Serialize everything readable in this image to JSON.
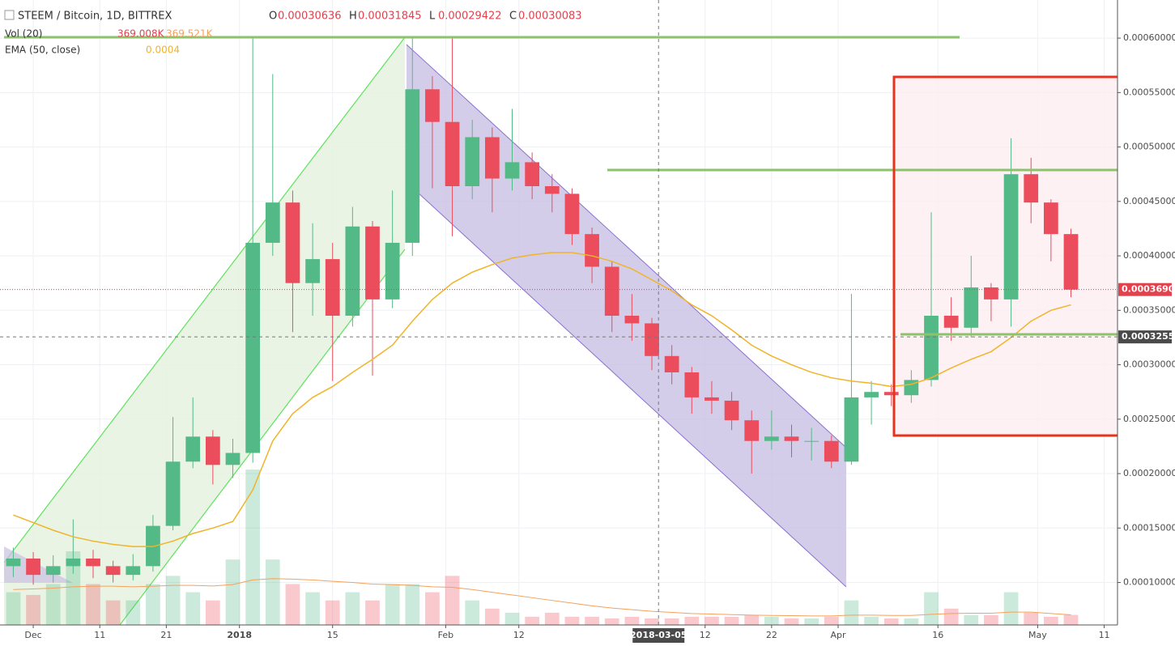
{
  "chart_data": {
    "type": "candlestick",
    "title": "STEEM / Bitcoin, 1D, BITTREX",
    "ohlc": [
      {
        "label": "O",
        "value": 0.00030636
      },
      {
        "label": "H",
        "value": 0.00031845
      },
      {
        "label": "L",
        "value": 0.00029422
      },
      {
        "label": "C",
        "value": 0.00030083
      }
    ],
    "x": [
      "2017-11-28",
      "2017-12-01",
      "2017-12-04",
      "2017-12-07",
      "2017-12-10",
      "2017-12-13",
      "2017-12-16",
      "2017-12-19",
      "2017-12-22",
      "2017-12-25",
      "2017-12-28",
      "2017-12-31",
      "2018-01-03",
      "2018-01-06",
      "2018-01-09",
      "2018-01-12",
      "2018-01-15",
      "2018-01-18",
      "2018-01-21",
      "2018-01-24",
      "2018-01-27",
      "2018-01-30",
      "2018-02-02",
      "2018-02-05",
      "2018-02-08",
      "2018-02-11",
      "2018-02-14",
      "2018-02-17",
      "2018-02-20",
      "2018-02-23",
      "2018-02-26",
      "2018-03-01",
      "2018-03-04",
      "2018-03-07",
      "2018-03-10",
      "2018-03-13",
      "2018-03-16",
      "2018-03-19",
      "2018-03-22",
      "2018-03-25",
      "2018-03-28",
      "2018-03-31",
      "2018-04-03",
      "2018-04-06",
      "2018-04-09",
      "2018-04-12",
      "2018-04-15",
      "2018-04-18",
      "2018-04-21",
      "2018-04-24",
      "2018-04-27",
      "2018-04-30",
      "2018-05-03",
      "2018-05-06"
    ],
    "open": [
      0.000115,
      0.000122,
      0.000107,
      0.000115,
      0.000122,
      0.000115,
      0.000107,
      0.000115,
      0.000152,
      0.000211,
      0.000234,
      0.000208,
      0.000219,
      0.000412,
      0.000449,
      0.000375,
      0.000397,
      0.000345,
      0.000427,
      0.00036,
      0.000412,
      0.000553,
      0.000523,
      0.000464,
      0.000509,
      0.000471,
      0.000486,
      0.000464,
      0.000457,
      0.00042,
      0.00039,
      0.000345,
      0.000338,
      0.000308,
      0.000293,
      0.00027,
      0.000267,
      0.000249,
      0.00023,
      0.000234,
      0.00023,
      0.00023,
      0.000211,
      0.00027,
      0.000275,
      0.000272,
      0.000286,
      0.000345,
      0.000334,
      0.000371,
      0.00036,
      0.000475,
      0.000449,
      0.00042
    ],
    "high": [
      0.000132,
      0.000128,
      0.000125,
      0.000158,
      0.00013,
      0.00012,
      0.000126,
      0.000162,
      0.000252,
      0.00027,
      0.00024,
      0.000232,
      0.0006,
      0.000567,
      0.00046,
      0.00043,
      0.000412,
      0.000445,
      0.000432,
      0.00046,
      0.0006,
      0.000565,
      0.0006,
      0.000525,
      0.000518,
      0.000535,
      0.000495,
      0.000475,
      0.000462,
      0.000426,
      0.000395,
      0.000365,
      0.000343,
      0.000318,
      0.000298,
      0.000285,
      0.000275,
      0.000258,
      0.000258,
      0.000245,
      0.000242,
      0.000235,
      0.000365,
      0.000285,
      0.000282,
      0.000295,
      0.00044,
      0.000362,
      0.0004,
      0.000375,
      0.000508,
      0.00049,
      0.000452,
      0.000425
    ],
    "low": [
      0.000105,
      9.8e-05,
      0.0001,
      0.000108,
      0.000104,
      0.0001,
      0.000102,
      0.00011,
      0.000148,
      0.000205,
      0.00019,
      0.000196,
      0.00021,
      0.0004,
      0.00033,
      0.000345,
      0.000285,
      0.000335,
      0.00029,
      0.000352,
      0.0004,
      0.000462,
      0.000418,
      0.000452,
      0.00044,
      0.00046,
      0.000452,
      0.00044,
      0.00041,
      0.000375,
      0.00033,
      0.000322,
      0.000295,
      0.000282,
      0.000255,
      0.000255,
      0.00024,
      0.0002,
      0.000222,
      0.000215,
      0.000212,
      0.000205,
      0.000208,
      0.000245,
      0.000262,
      0.000265,
      0.00028,
      0.000322,
      0.000325,
      0.00034,
      0.000335,
      0.00043,
      0.000395,
      0.000362
    ],
    "close": [
      0.000122,
      0.000107,
      0.000115,
      0.000122,
      0.000115,
      0.000107,
      0.000115,
      0.000152,
      0.000211,
      0.000234,
      0.000208,
      0.000219,
      0.000412,
      0.000449,
      0.000375,
      0.000397,
      0.000345,
      0.000427,
      0.00036,
      0.000412,
      0.000553,
      0.000523,
      0.000464,
      0.000509,
      0.000471,
      0.000486,
      0.000464,
      0.000457,
      0.00042,
      0.00039,
      0.000345,
      0.000338,
      0.000308,
      0.000293,
      0.00027,
      0.000267,
      0.000249,
      0.00023,
      0.000234,
      0.00023,
      0.00023,
      0.000211,
      0.00027,
      0.000275,
      0.000272,
      0.000286,
      0.000345,
      0.000334,
      0.000371,
      0.00036,
      0.000475,
      0.000449,
      0.00042,
      0.000369
    ],
    "up_color": "#53b987",
    "down_color": "#eb4d5c",
    "ema": {
      "name": "EMA (50, close)",
      "value_label": "0.0004",
      "color": "#f0b429",
      "values": [
        0.000162,
        0.000155,
        0.000148,
        0.000142,
        0.000138,
        0.000135,
        0.000133,
        0.000133,
        0.000138,
        0.000145,
        0.00015,
        0.000156,
        0.000185,
        0.00023,
        0.000255,
        0.00027,
        0.00028,
        0.000293,
        0.000305,
        0.000318,
        0.00034,
        0.00036,
        0.000375,
        0.000385,
        0.000392,
        0.000398,
        0.000401,
        0.000403,
        0.000403,
        0.0004,
        0.000395,
        0.000388,
        0.000378,
        0.000368,
        0.000355,
        0.000345,
        0.000332,
        0.000318,
        0.000308,
        0.0003,
        0.000293,
        0.000288,
        0.000285,
        0.000283,
        0.00028,
        0.000282,
        0.000288,
        0.000297,
        0.000305,
        0.000312,
        0.000325,
        0.00034,
        0.00035,
        0.000355
      ]
    },
    "volume": {
      "name": "Vol (20)",
      "value_label": "369.008K",
      "ma_label": "369.521K",
      "ma_color": "#f5a15a",
      "values": [
        1200,
        1100,
        1500,
        2700,
        1500,
        900,
        900,
        1500,
        1800,
        1200,
        900,
        2400,
        5700,
        2400,
        1500,
        1200,
        900,
        1200,
        900,
        1500,
        1500,
        1200,
        1800,
        900,
        600,
        450,
        300,
        450,
        300,
        300,
        240,
        300,
        240,
        240,
        300,
        300,
        300,
        360,
        300,
        240,
        240,
        300,
        900,
        300,
        240,
        240,
        1200,
        600,
        360,
        360,
        1200,
        450,
        300,
        369.008
      ],
      "ma": [
        1300,
        1320,
        1350,
        1400,
        1420,
        1420,
        1400,
        1420,
        1450,
        1450,
        1430,
        1480,
        1650,
        1700,
        1680,
        1650,
        1600,
        1560,
        1500,
        1480,
        1450,
        1400,
        1380,
        1300,
        1200,
        1100,
        1000,
        900,
        800,
        700,
        620,
        560,
        500,
        460,
        420,
        400,
        380,
        360,
        350,
        340,
        330,
        330,
        360,
        360,
        350,
        350,
        390,
        420,
        430,
        430,
        470,
        470,
        420,
        369.521
      ]
    },
    "xlim": [
      "2017-11-26",
      "2018-05-13"
    ],
    "xticks": [
      {
        "value": "2017-12-01",
        "label": "Dec"
      },
      {
        "value": "2017-12-11",
        "label": "11"
      },
      {
        "value": "2017-12-21",
        "label": "21"
      },
      {
        "value": "2018-01-01",
        "label": "2018"
      },
      {
        "value": "2018-01-15",
        "label": "15"
      },
      {
        "value": "2018-02-01",
        "label": "Feb"
      },
      {
        "value": "2018-02-12",
        "label": "12"
      },
      {
        "value": "2018-03-12",
        "label": "12"
      },
      {
        "value": "2018-03-22",
        "label": "22"
      },
      {
        "value": "2018-04-01",
        "label": "Apr"
      },
      {
        "value": "2018-04-16",
        "label": "16"
      },
      {
        "value": "2018-05-01",
        "label": "May"
      },
      {
        "value": "2018-05-11",
        "label": "11"
      }
    ],
    "ylim": [
      6.1e-05,
      0.000635
    ],
    "yticks": [
      {
        "value": 0.0001,
        "label": "0.00010000"
      },
      {
        "value": 0.00015,
        "label": "0.00015000"
      },
      {
        "value": 0.0002,
        "label": "0.00020000"
      },
      {
        "value": 0.00025,
        "label": "0.00025000"
      },
      {
        "value": 0.0003,
        "label": "0.00030000"
      },
      {
        "value": 0.00035,
        "label": "0.00035000"
      },
      {
        "value": 0.0004,
        "label": "0.00040000"
      },
      {
        "value": 0.00045,
        "label": "0.00045000"
      },
      {
        "value": 0.0005,
        "label": "0.00050000"
      },
      {
        "value": 0.00055,
        "label": "0.00055000"
      },
      {
        "value": 0.0006,
        "label": "0.00060000"
      }
    ],
    "last_price": {
      "value": 0.00036906,
      "label": "0.00036906"
    },
    "crosshair": {
      "price": {
        "value": 0.00032556,
        "label": "0.00032556"
      },
      "date": "2018-03-05"
    },
    "grid": true
  }
}
